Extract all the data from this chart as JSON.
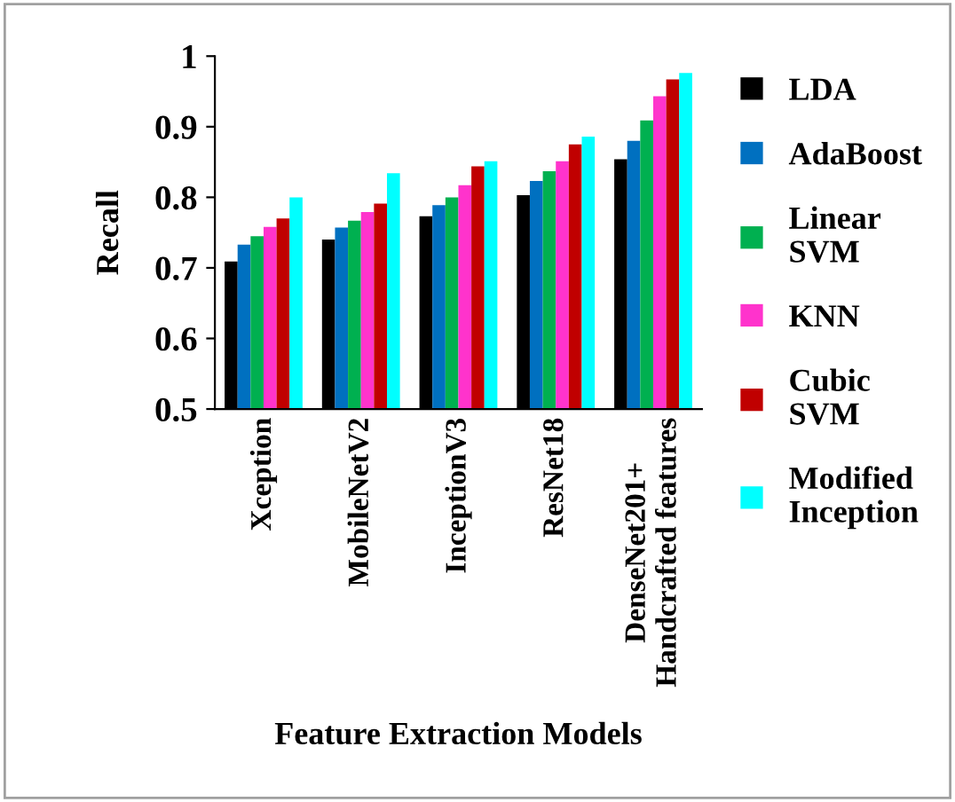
{
  "chart_data": {
    "type": "bar",
    "categories": [
      "Xception",
      "MobileNetV2",
      "InceptionV3",
      "ResNet18",
      "DenseNet201+\nHandcrafted features"
    ],
    "xlabel": "Feature Extraction Models",
    "ylabel": "Recall",
    "ylim": [
      0.5,
      1
    ],
    "yticks": [
      0.5,
      0.6,
      0.7,
      0.8,
      0.9,
      1
    ],
    "legend": "right",
    "grid": false,
    "series": [
      {
        "name": "LDA",
        "color": "#000000",
        "values": [
          0.709,
          0.74,
          0.773,
          0.803,
          0.854
        ]
      },
      {
        "name": "AdaBoost",
        "color": "#0070c0",
        "values": [
          0.733,
          0.757,
          0.789,
          0.823,
          0.88
        ]
      },
      {
        "name": "Linear\nSVM",
        "color": "#00b050",
        "values": [
          0.745,
          0.767,
          0.8,
          0.837,
          0.909
        ]
      },
      {
        "name": "KNN",
        "color": "#ff33cc",
        "values": [
          0.758,
          0.779,
          0.817,
          0.851,
          0.943
        ]
      },
      {
        "name": "Cubic\nSVM",
        "color": "#c00000",
        "values": [
          0.77,
          0.791,
          0.844,
          0.875,
          0.967
        ]
      },
      {
        "name": "Modified\nInception",
        "color": "#00ffff",
        "values": [
          0.8,
          0.834,
          0.851,
          0.886,
          0.976
        ]
      }
    ]
  }
}
